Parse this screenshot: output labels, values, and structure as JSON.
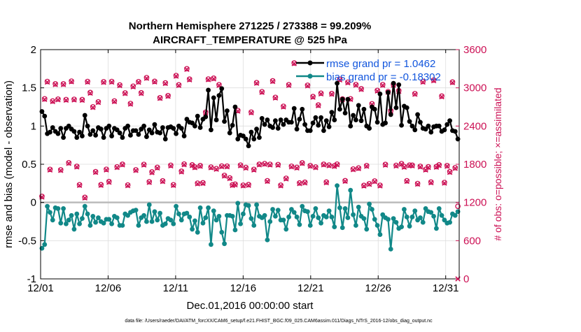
{
  "chart_data": {
    "type": "line",
    "title_line1": "Northern Hemisphere 271225 / 273388 = 99.209%",
    "title_line2": "AIRCRAFT_TEMPERATURE @ 525 hPa",
    "xlabel": "Dec.01,2016 00:00:00 start",
    "ylabel_left": "rmse and bias (model - observation)",
    "ylabel_right": "# of obs: o=possible; ×=assimilated",
    "footer": "data file: /Users/raeder/DAI/ATM_forcXX/CAM6_setup/f.e21.FHIST_BGC.f09_025.CAM6assim.011/Diags_NTrS_2016-12/obs_diag_output.nc",
    "x_ticks": [
      "12/01",
      "12/06",
      "12/11",
      "12/16",
      "12/21",
      "12/26",
      "12/31"
    ],
    "x_tick_days": [
      1,
      6,
      11,
      16,
      21,
      26,
      31
    ],
    "xlim": [
      1,
      32
    ],
    "ylim_left": [
      -1,
      2
    ],
    "yticks_left": [
      "-1",
      "-0.5",
      "0",
      "0.5",
      "1",
      "1.5",
      "2"
    ],
    "ylim_right": [
      0,
      3600
    ],
    "yticks_right": [
      "0",
      "600",
      "1200",
      "1800",
      "2400",
      "3000",
      "3600"
    ],
    "legend": [
      {
        "label": "rmse grand pr = 1.0462",
        "color": "#000000"
      },
      {
        "label": "bias grand pr = -0.18302",
        "color": "#118888"
      }
    ],
    "series": [
      {
        "name": "rmse",
        "color": "#000000",
        "values": [
          1.19,
          1.13,
          0.9,
          0.92,
          0.98,
          0.93,
          0.9,
          0.97,
          0.85,
          0.97,
          1.0,
          0.96,
          0.93,
          0.85,
          0.92,
          0.87,
          1.14,
          1.0,
          0.89,
          0.94,
          0.88,
          0.98,
          0.96,
          0.85,
          0.97,
          1.0,
          0.87,
          0.97,
          0.95,
          0.91,
          0.85,
          0.97,
          1.0,
          0.88,
          0.94,
          0.94,
          0.89,
          0.96,
          1.0,
          0.86,
          0.95,
          0.91,
          1.02,
          0.92,
          0.91,
          0.98,
          0.83,
          0.98,
          0.99,
          0.97,
          0.9,
          1.0,
          0.97,
          0.87,
          1.09,
          1.05,
          1.04,
          1.0,
          1.13,
          0.98,
          1.09,
          1.12,
          1.47,
          0.95,
          1.37,
          1.08,
          1.4,
          1.49,
          1.06,
          1.2,
          0.91,
          1.01,
          1.25,
          0.83,
          0.88,
          0.87,
          0.83,
          0.74,
          0.92,
          0.83,
          0.96,
          0.85,
          1.1,
          1.02,
          1.08,
          1.0,
          0.98,
          1.07,
          0.97,
          1.08,
          1.02,
          1.08,
          1.05,
          1.05,
          1.23,
          0.96,
          1.09,
          1.22,
          1.02,
          0.94,
          0.94,
          1.04,
          1.11,
          1.01,
          1.11,
          0.94,
          1.07,
          0.99,
          1.18,
          1.08,
          1.56,
          1.22,
          1.35,
          1.17,
          1.35,
          1.0,
          1.14,
          1.08,
          1.27,
          1.07,
          1.22,
          1.0,
          0.97,
          1.25,
          1.22,
          1.05,
          1.42,
          1.02,
          1.04,
          1.44,
          1.15,
          1.56,
          1.24,
          1.54,
          1.01,
          1.26,
          1.24,
          1.06,
          1.0,
          0.95,
          1.15,
          1.05,
          0.97,
          0.96,
          1.0,
          0.92,
          0.99,
          1.0,
          1.0,
          0.93,
          0.95,
          1.02,
          1.07,
          0.94,
          0.93,
          0.83
        ]
      },
      {
        "name": "bias",
        "color": "#118888",
        "values": [
          -0.6,
          -0.55,
          -0.05,
          -0.13,
          -0.23,
          -0.07,
          -0.08,
          -0.27,
          -0.08,
          -0.28,
          -0.23,
          -0.17,
          -0.35,
          -0.15,
          -0.28,
          -0.21,
          -0.05,
          -0.15,
          -0.3,
          -0.18,
          -0.26,
          -0.2,
          -0.25,
          -0.27,
          -0.22,
          -0.22,
          -0.28,
          -0.18,
          -0.2,
          -0.3,
          -0.3,
          -0.15,
          -0.17,
          -0.13,
          -0.11,
          -0.1,
          -0.3,
          -0.2,
          -0.17,
          -0.25,
          -0.03,
          -0.25,
          -0.12,
          -0.23,
          -0.14,
          -0.3,
          -0.28,
          -0.21,
          -0.23,
          -0.28,
          -0.05,
          -0.15,
          -0.23,
          -0.15,
          -0.14,
          -0.19,
          -0.35,
          -0.24,
          -0.39,
          -0.07,
          -0.27,
          -0.2,
          -0.07,
          -0.55,
          -0.11,
          -0.23,
          -0.18,
          -0.39,
          -0.54,
          -0.17,
          -0.17,
          -0.18,
          -0.36,
          -0.01,
          -0.28,
          -0.15,
          -0.03,
          -0.04,
          -0.21,
          -0.3,
          -0.03,
          -0.18,
          -0.2,
          -0.17,
          -0.49,
          -0.25,
          -0.09,
          -0.18,
          -0.1,
          -0.23,
          -0.23,
          -0.35,
          -0.19,
          -0.09,
          -0.13,
          -0.19,
          -0.29,
          -0.05,
          -0.11,
          -0.12,
          -0.3,
          -0.18,
          -0.08,
          -0.2,
          -0.27,
          -0.17,
          -0.19,
          -0.11,
          -0.19,
          -0.32,
          0.22,
          -0.07,
          -0.33,
          -0.08,
          -0.2,
          0.16,
          -0.16,
          -0.3,
          -0.06,
          -0.18,
          -0.21,
          -0.35,
          -0.02,
          -0.09,
          -0.22,
          -0.3,
          -0.42,
          -0.16,
          -0.2,
          -0.22,
          -0.61,
          -0.21,
          -0.26,
          -0.34,
          -0.32,
          -0.09,
          -0.19,
          -0.31,
          -0.19,
          -0.11,
          -0.23,
          -0.2,
          -0.26,
          -0.08,
          -0.12,
          -0.13,
          -0.18,
          -0.34,
          -0.08,
          -0.17,
          -0.23,
          -0.27,
          -0.26,
          -0.15,
          -0.17,
          -0.12
        ]
      },
      {
        "name": "obs possible",
        "color": "#cc1155",
        "axis": "right",
        "values": [
          1295,
          2828,
          3100,
          1720,
          2794,
          3062,
          2823,
          1713,
          3062,
          2816,
          1824,
          3105,
          2820,
          1767,
          1478,
          2815,
          1280,
          3100,
          2926,
          2702,
          1683,
          2780,
          1479,
          3096,
          1721,
          1528,
          3100,
          2794,
          1759,
          3045,
          1800,
          2920,
          1474,
          2754,
          3026,
          1713,
          3097,
          2922,
          1798,
          3160,
          1525,
          1679,
          3102,
          1751,
          2844,
          1539,
          3078,
          2877,
          1784,
          1478,
          3193,
          3048,
          1690,
          1803,
          3300,
          3136,
          1790,
          1756,
          1503,
          1778,
          1509,
          2616,
          3138,
          1755,
          3151,
          1732,
          3049,
          1772,
          1625,
          1770,
          1585,
          1477,
          1487,
          2644,
          1787,
          1471,
          1750,
          1480,
          2618,
          1720,
          3082,
          1800,
          2939,
          1810,
          1541,
          1799,
          3110,
          2850,
          1795,
          1471,
          2710,
          1580,
          3049,
          1769,
          3390,
          1751,
          1506,
          1822,
          1517,
          3041,
          1779,
          2863,
          1757,
          2730,
          2915,
          1800,
          1520,
          1787,
          2910,
          1776,
          1802,
          3134,
          2825,
          1542,
          3089,
          2828,
          1725,
          3052,
          1741,
          2985,
          1468,
          1779,
          1495,
          2750,
          1537,
          2960,
          1470,
          3050,
          1797,
          2941,
          2640,
          3052,
          1783,
          2955,
          1810,
          1764,
          1541,
          1787,
          1785,
          2909,
          1497,
          1768,
          3100,
          1720,
          1760,
          1520,
          3122,
          1763,
          1790,
          2870,
          1514,
          1779,
          1683,
          3091,
          1746,
          1140
        ]
      },
      {
        "name": "obs assimilated",
        "color": "#cc1155",
        "axis": "right",
        "values": [
          1285,
          2818,
          3090,
          1710,
          2784,
          3052,
          2813,
          1703,
          3052,
          2806,
          1814,
          3095,
          2810,
          1757,
          1468,
          2805,
          1270,
          3090,
          2916,
          2692,
          1673,
          2770,
          1469,
          3086,
          1711,
          1518,
          3090,
          2784,
          1749,
          3035,
          1790,
          2910,
          1464,
          2744,
          3016,
          1703,
          3087,
          2912,
          1788,
          3150,
          1515,
          1669,
          3092,
          1741,
          2834,
          1529,
          3068,
          2867,
          1774,
          1468,
          3183,
          3038,
          1680,
          1793,
          3290,
          3126,
          1780,
          1746,
          1493,
          1768,
          1499,
          2606,
          3128,
          1745,
          3141,
          1722,
          3039,
          1762,
          1615,
          1760,
          1575,
          1467,
          1477,
          2634,
          1777,
          1461,
          1740,
          1470,
          2608,
          1710,
          3072,
          1790,
          2929,
          1800,
          1531,
          1789,
          3100,
          2840,
          1785,
          1461,
          2700,
          1570,
          3039,
          1759,
          3380,
          1741,
          1496,
          1812,
          1507,
          3031,
          1769,
          2853,
          1747,
          2720,
          2905,
          1790,
          1510,
          1777,
          2900,
          1766,
          1792,
          3124,
          2815,
          1532,
          3079,
          2818,
          1715,
          3042,
          1731,
          2975,
          1458,
          1769,
          1485,
          2740,
          1527,
          2950,
          1460,
          3040,
          1787,
          2931,
          2630,
          3042,
          1773,
          2945,
          1800,
          1754,
          1531,
          1777,
          1775,
          2899,
          1487,
          1758,
          3090,
          1710,
          1750,
          1510,
          3112,
          1753,
          1780,
          2860,
          1504,
          1769,
          1673,
          3081,
          1736,
          0
        ]
      }
    ]
  }
}
